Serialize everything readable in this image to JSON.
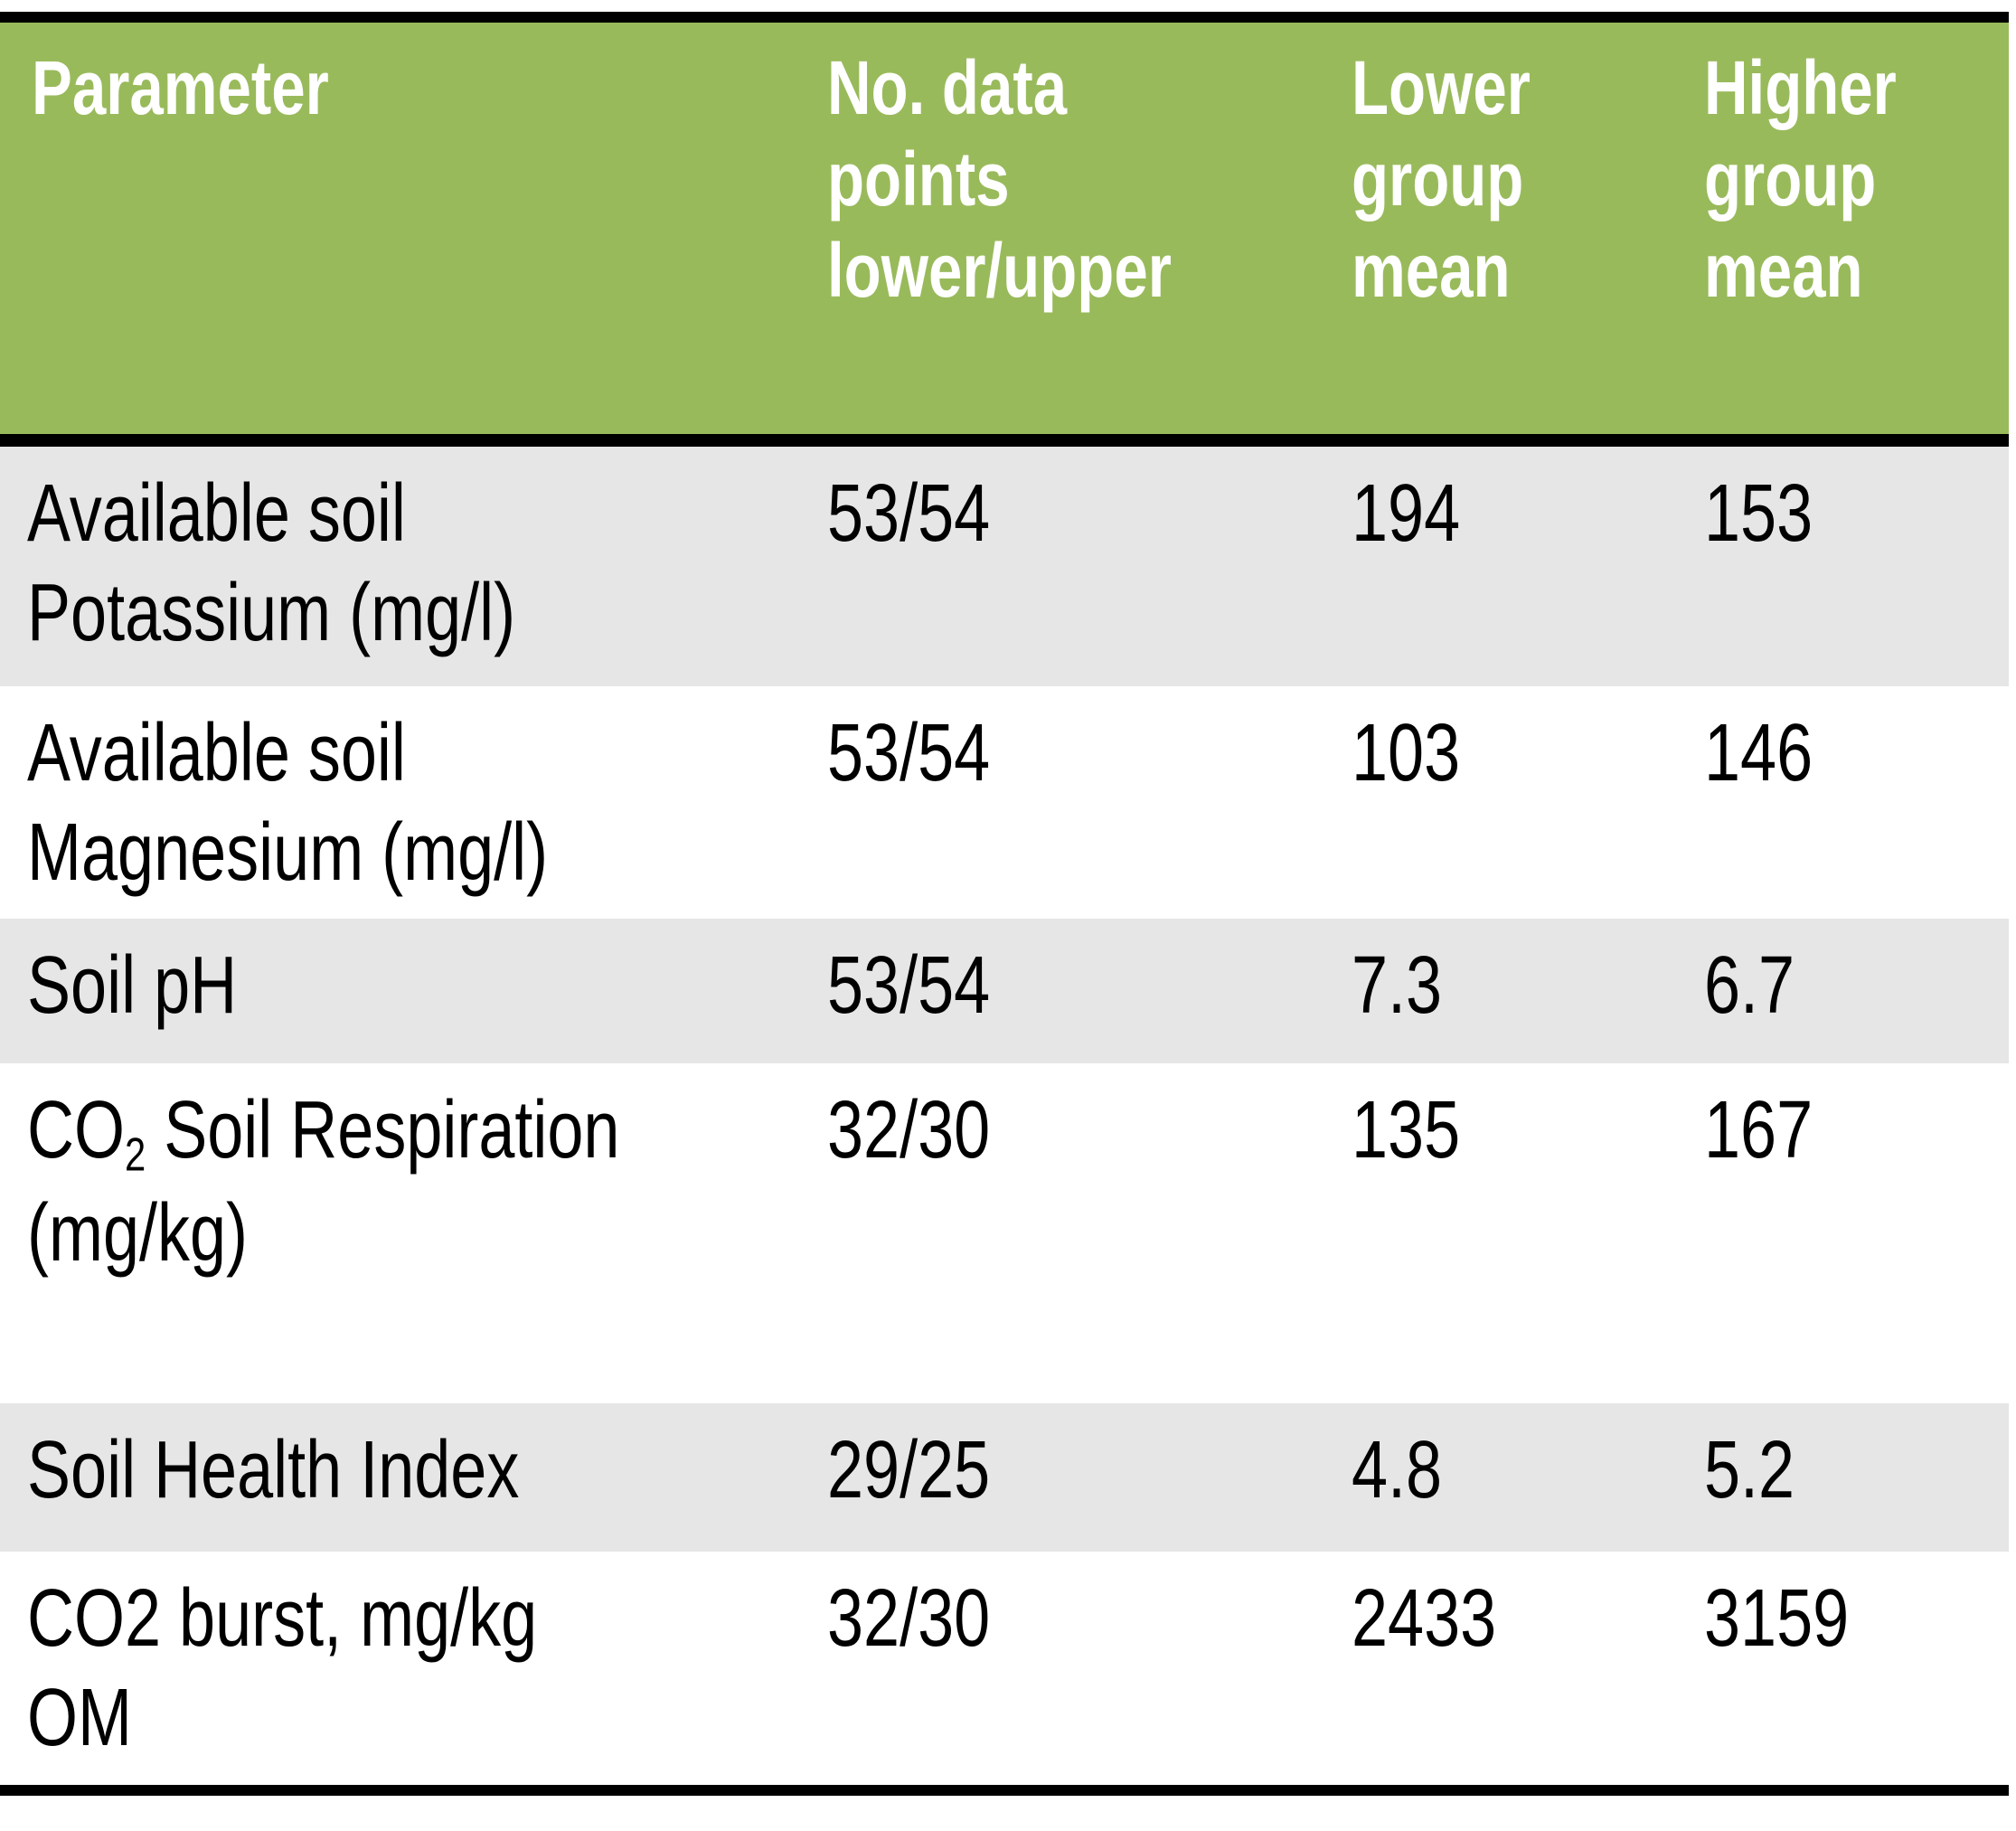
{
  "page": {
    "background": "#FFFFFF"
  },
  "table": {
    "style": {
      "header_bg": "#99BA5B",
      "header_text_color": "#FFFFFF",
      "band_row_bg": "#E6E6E6",
      "plain_row_bg": "#FFFFFF",
      "border_color": "#000000",
      "body_text_color": "#000000"
    },
    "header": {
      "parameter": "Parameter",
      "n_points": "No. data\npoints\nlower/upper",
      "lower_mean": "Lower\ngroup\nmean",
      "higher_mean": "Higher\ngroup\nmean"
    },
    "rows": [
      {
        "param": "Available soil\nPotassium (mg/l)",
        "param_sub": "",
        "param_tail": "",
        "n_points": "53/54",
        "lower_mean": "194",
        "higher_mean": "153"
      },
      {
        "param": "Available soil\nMagnesium (mg/l)",
        "param_sub": "",
        "param_tail": "",
        "n_points": "53/54",
        "lower_mean": "103",
        "higher_mean": "146"
      },
      {
        "param": "Soil pH",
        "param_sub": "",
        "param_tail": "",
        "n_points": "53/54",
        "lower_mean": "7.3",
        "higher_mean": "6.7"
      },
      {
        "param": "CO",
        "param_sub": "2",
        "param_tail": " Soil Respiration\n(mg/kg)",
        "n_points": "32/30",
        "lower_mean": "135",
        "higher_mean": "167"
      },
      {
        "param": "Soil Health Index",
        "param_sub": "",
        "param_tail": "",
        "n_points": "29/25",
        "lower_mean": "4.8",
        "higher_mean": "5.2"
      },
      {
        "param": "CO2 burst, mg/kg\nOM",
        "param_sub": "",
        "param_tail": "",
        "n_points": "32/30",
        "lower_mean": "2433",
        "higher_mean": "3159"
      }
    ]
  },
  "chart_data": {
    "type": "table",
    "title": "",
    "columns": [
      "Parameter",
      "No. data points lower/upper",
      "Lower group mean",
      "Higher group mean"
    ],
    "rows": [
      [
        "Available soil Potassium (mg/l)",
        "53/54",
        "194",
        "153"
      ],
      [
        "Available soil Magnesium (mg/l)",
        "53/54",
        "103",
        "146"
      ],
      [
        "Soil pH",
        "53/54",
        "7.3",
        "6.7"
      ],
      [
        "CO2 Soil Respiration (mg/kg)",
        "32/30",
        "135",
        "167"
      ],
      [
        "Soil Health Index",
        "29/25",
        "4.8",
        "5.2"
      ],
      [
        "CO2 burst, mg/kg OM",
        "32/30",
        "2433",
        "3159"
      ]
    ],
    "layout_hints": {
      "header_bg": "#99BA5B",
      "row_banding": [
        "#E6E6E6",
        "#FFFFFF"
      ],
      "black_rule_top": true,
      "black_rule_below_header": true,
      "black_rule_bottom": true
    }
  }
}
